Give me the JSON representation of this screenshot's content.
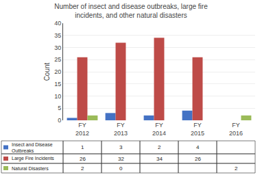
{
  "chart_data": {
    "type": "bar",
    "title": "Number of insect and disease outbreaks, large fire\nincidents, and other natural disasters",
    "categories": [
      "FY\n2012",
      "FY\n2013",
      "FY\n2014",
      "FY\n2015",
      "FY\n2016"
    ],
    "series": [
      {
        "name": "Insect and Disease\nOutbreaks",
        "color": "#4472C4",
        "values": [
          1,
          3,
          2,
          4,
          0
        ],
        "value_labels": [
          "1",
          "3",
          "2",
          "4",
          null
        ]
      },
      {
        "name": "Large Fire Incidents",
        "color": "#BE4B48",
        "values": [
          26,
          32,
          34,
          26,
          0
        ],
        "value_labels": [
          "26",
          "32",
          "34",
          "26",
          null
        ]
      },
      {
        "name": "Natural Disasters",
        "color": "#9BBB59",
        "values": [
          2,
          0,
          0,
          0,
          2
        ],
        "value_labels": [
          "2",
          "0",
          null,
          null,
          "2"
        ]
      }
    ],
    "ylabel": "Count",
    "ylim": [
      0,
      40
    ],
    "yticks": [
      0,
      5,
      10,
      15,
      20,
      25,
      30,
      35,
      40
    ],
    "grid": true
  }
}
